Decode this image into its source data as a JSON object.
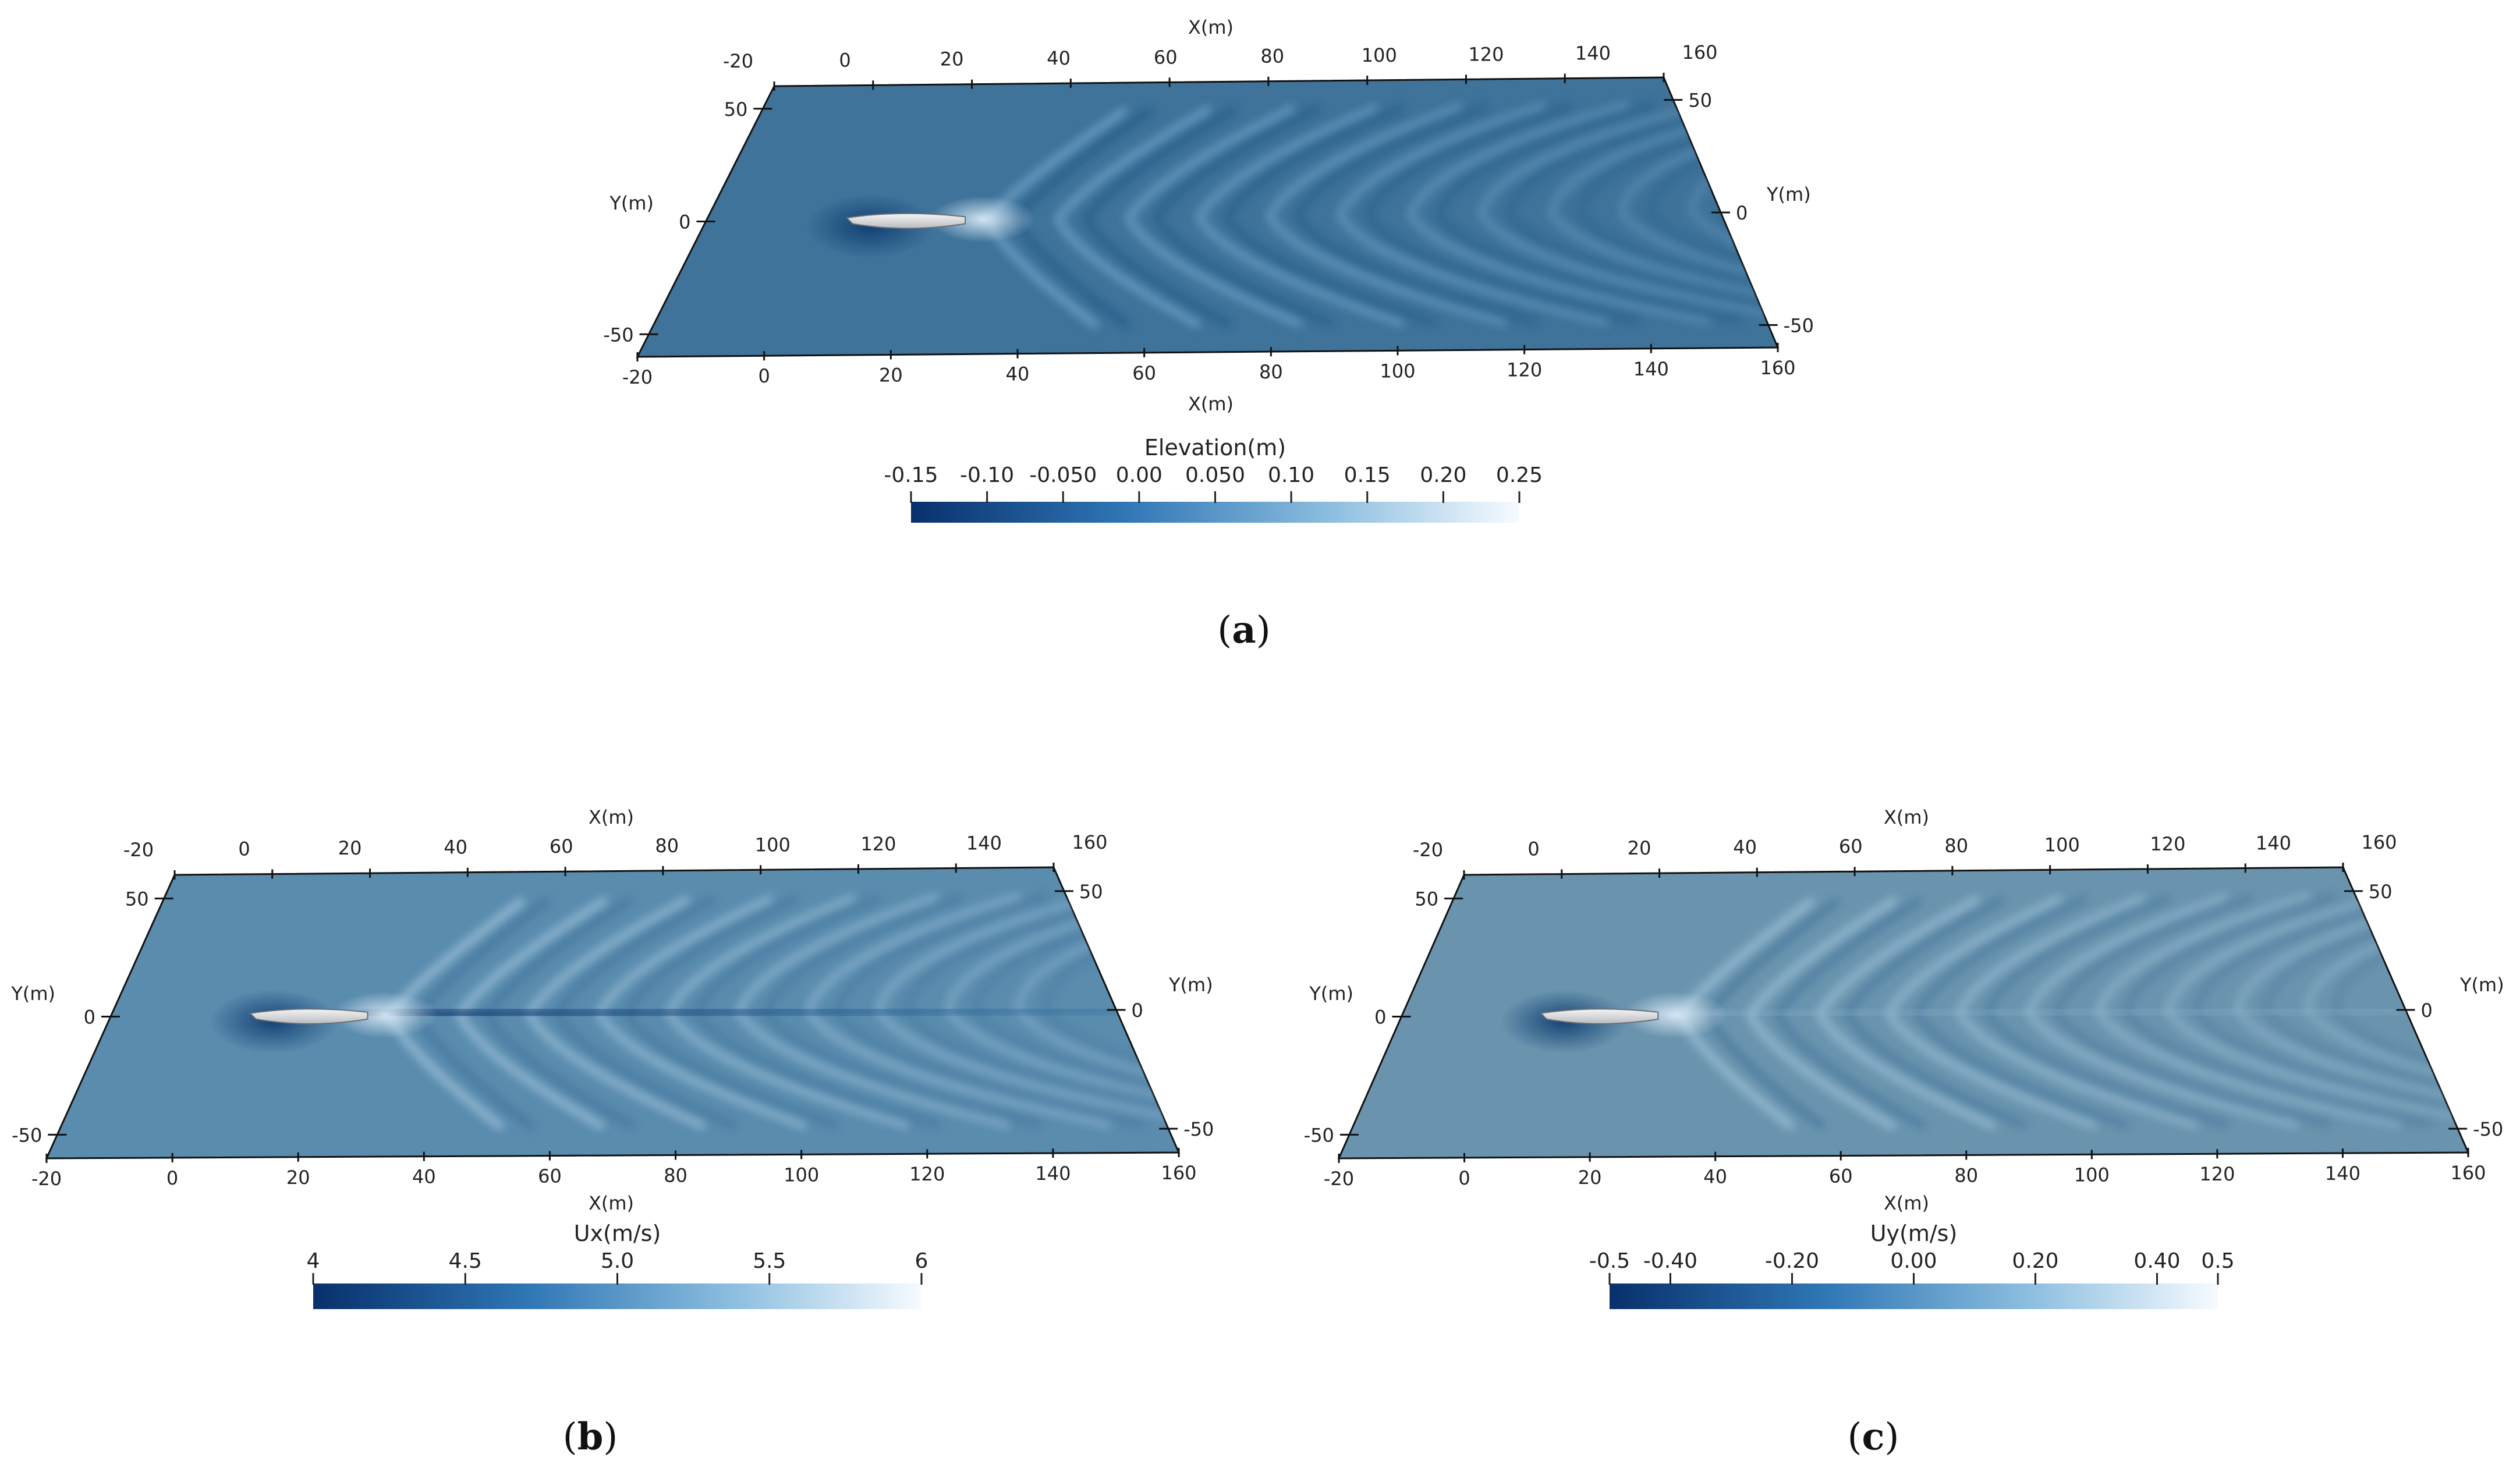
{
  "panels": [
    {
      "label": "a",
      "colorbar": {
        "title": "Elevation(m)",
        "ticks": [
          "-0.15",
          "-0.10",
          "-0.050",
          "0.00",
          "0.050",
          "0.10",
          "0.15",
          "0.20",
          "0.25"
        ]
      },
      "x_axis_title": "X(m)",
      "y_axis_title": "Y(m)",
      "x_ticks": [
        "-20",
        "0",
        "20",
        "40",
        "60",
        "80",
        "100",
        "120",
        "140",
        "160"
      ],
      "y_ticks": [
        "50",
        "0",
        "-50"
      ]
    },
    {
      "label": "b",
      "colorbar": {
        "title": "Ux(m/s)",
        "ticks": [
          "4",
          "4.5",
          "5.0",
          "5.5",
          "6"
        ]
      },
      "x_axis_title": "X(m)",
      "y_axis_title": "Y(m)",
      "x_ticks": [
        "-20",
        "0",
        "20",
        "40",
        "60",
        "80",
        "100",
        "120",
        "140",
        "160"
      ],
      "y_ticks": [
        "50",
        "0",
        "-50"
      ]
    },
    {
      "label": "c",
      "colorbar": {
        "title": "Uy(m/s)",
        "ticks": [
          "-0.5",
          "-0.40",
          "-0.20",
          "0.00",
          "0.20",
          "0.40",
          "0.5"
        ]
      },
      "x_axis_title": "X(m)",
      "y_axis_title": "Y(m)",
      "x_ticks": [
        "-20",
        "0",
        "20",
        "40",
        "60",
        "80",
        "100",
        "120",
        "140",
        "160"
      ],
      "y_ticks": [
        "50",
        "0",
        "-50"
      ]
    }
  ],
  "colors": {
    "panel_a_field": "#3f739a",
    "panel_b_field": "#5a8cae",
    "panel_c_field": "#6a94ae",
    "colormap_low": "#08306b",
    "colormap_mid": "#6baed6",
    "colormap_high": "#f7fbff"
  }
}
